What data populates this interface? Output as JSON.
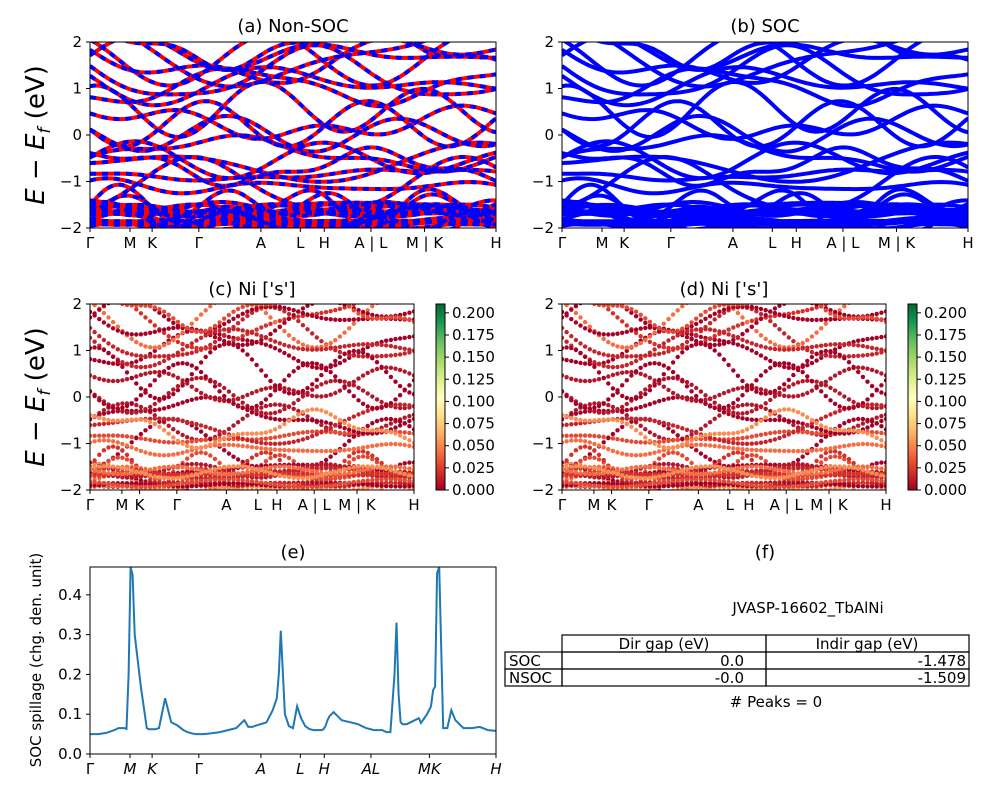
{
  "figure": {
    "panel_a_title": "(a) Non-SOC",
    "panel_b_title": "(b) SOC",
    "panel_c_title": "(c)  Ni ['s']",
    "panel_d_title": "(d) Ni ['s']",
    "panel_e_title": "(e)",
    "panel_f_title": "(f)",
    "energy_ylabel": "E − E_f (eV)",
    "spillage_ylabel": "SOC spillage (chg. den. unit)"
  },
  "kpath": {
    "band_labels": [
      "Γ",
      "M",
      "K",
      "Γ",
      "A",
      "L",
      "H",
      "A | L",
      "M | K",
      "H"
    ],
    "spillage_labels": [
      "Γ",
      "M",
      "K",
      "Γ",
      "A",
      "L",
      "H",
      "AL",
      "MK",
      "H"
    ]
  },
  "colorbar": {
    "ticks": [
      "0.000",
      "0.025",
      "0.050",
      "0.075",
      "0.100",
      "0.125",
      "0.150",
      "0.175",
      "0.200"
    ],
    "range": [
      0,
      0.21
    ],
    "colormap": "RdYlGn"
  },
  "colors": {
    "nonsoc_up": "#ff0000",
    "nonsoc_dn": "#0000ff",
    "soc": "#0000ff",
    "spillage_line": "#1f77b4"
  },
  "table": {
    "material": "JVASP-16602_TbAlNi",
    "headers": [
      "Dir gap (eV)",
      "Indir gap (eV)"
    ],
    "rows": [
      {
        "label": "SOC",
        "dir": "0.0",
        "indir": "-1.478"
      },
      {
        "label": "NSOC",
        "dir": "-0.0",
        "indir": "-1.509"
      }
    ],
    "peaks": "# Peaks = 0"
  },
  "chart_data": [
    {
      "panel": "a",
      "type": "line",
      "title": "(a) Non-SOC",
      "ylabel": "E − E_f (eV)",
      "ylim": [
        -2,
        2
      ],
      "yticks": [
        -2,
        -1,
        0,
        1,
        2
      ],
      "xticklabels": [
        "Γ",
        "M",
        "K",
        "Γ",
        "A",
        "L",
        "H",
        "A | L",
        "M | K",
        "H"
      ]
    },
    {
      "panel": "b",
      "type": "line",
      "title": "(b) SOC",
      "ylim": [
        -2,
        2
      ],
      "yticks": [
        -2,
        -1,
        0,
        1,
        2
      ],
      "xticklabels": [
        "Γ",
        "M",
        "K",
        "Γ",
        "A",
        "L",
        "H",
        "A | L",
        "M | K",
        "H"
      ]
    },
    {
      "panel": "c",
      "type": "scatter",
      "title": "(c)  Ni ['s']",
      "ylabel": "E − E_f (eV)",
      "ylim": [
        -2,
        2
      ],
      "yticks": [
        -2,
        -1,
        0,
        1,
        2
      ],
      "xticklabels": [
        "Γ",
        "M",
        "K",
        "Γ",
        "A",
        "L",
        "H",
        "A | L",
        "M | K",
        "H"
      ],
      "colorbar_range": [
        0,
        0.21
      ]
    },
    {
      "panel": "d",
      "type": "scatter",
      "title": "(d) Ni ['s']",
      "ylim": [
        -2,
        2
      ],
      "yticks": [
        -2,
        -1,
        0,
        1,
        2
      ],
      "xticklabels": [
        "Γ",
        "M",
        "K",
        "Γ",
        "A",
        "L",
        "H",
        "A | L",
        "M | K",
        "H"
      ],
      "colorbar_range": [
        0,
        0.21
      ]
    },
    {
      "panel": "e",
      "type": "line",
      "title": "(e)",
      "ylabel": "SOC spillage (chg. den. unit)",
      "ylim": [
        0,
        0.47
      ],
      "yticks": [
        0.0,
        0.1,
        0.2,
        0.3,
        0.4
      ],
      "xticklabels": [
        "Γ",
        "M",
        "K",
        "Γ",
        "A",
        "L",
        "H",
        "AL",
        "MK",
        "H"
      ],
      "series": [
        {
          "x": [
            0,
            0.02,
            0.04,
            0.06,
            0.07,
            0.08,
            0.085,
            0.09,
            0.095,
            0.1,
            0.105,
            0.11,
            0.125,
            0.14,
            0.145,
            0.15,
            0.155,
            0.16,
            0.17,
            0.185,
            0.2,
            0.215,
            0.23,
            0.24,
            0.25,
            0.26,
            0.27,
            0.275,
            0.28,
            0.3,
            0.32,
            0.34,
            0.36,
            0.38,
            0.39,
            0.4,
            0.405,
            0.41,
            0.42,
            0.43,
            0.435,
            0.44,
            0.45,
            0.46,
            0.465,
            0.47,
            0.48,
            0.49,
            0.5,
            0.51,
            0.52,
            0.53,
            0.54,
            0.55,
            0.56,
            0.57,
            0.575,
            0.58,
            0.585,
            0.59,
            0.6,
            0.61,
            0.62,
            0.64,
            0.66,
            0.68,
            0.7,
            0.72,
            0.73,
            0.74,
            0.75,
            0.755,
            0.76,
            0.765,
            0.77,
            0.78,
            0.79,
            0.8,
            0.81,
            0.815,
            0.82,
            0.83,
            0.84,
            0.845,
            0.85,
            0.855,
            0.86,
            0.87,
            0.88,
            0.89,
            0.9,
            0.92,
            0.94,
            0.96,
            0.98,
            1.0
          ],
          "y": [
            0.05,
            0.05,
            0.053,
            0.06,
            0.065,
            0.065,
            0.065,
            0.063,
            0.2,
            0.47,
            0.45,
            0.3,
            0.17,
            0.065,
            0.062,
            0.062,
            0.062,
            0.062,
            0.065,
            0.14,
            0.08,
            0.072,
            0.06,
            0.055,
            0.052,
            0.05,
            0.05,
            0.05,
            0.05,
            0.052,
            0.055,
            0.06,
            0.065,
            0.085,
            0.068,
            0.068,
            0.07,
            0.072,
            0.075,
            0.078,
            0.08,
            0.09,
            0.11,
            0.14,
            0.2,
            0.31,
            0.1,
            0.07,
            0.065,
            0.12,
            0.09,
            0.07,
            0.063,
            0.06,
            0.06,
            0.06,
            0.062,
            0.07,
            0.085,
            0.095,
            0.105,
            0.095,
            0.085,
            0.08,
            0.075,
            0.065,
            0.06,
            0.06,
            0.055,
            0.055,
            0.2,
            0.33,
            0.15,
            0.08,
            0.075,
            0.075,
            0.08,
            0.085,
            0.09,
            0.078,
            0.085,
            0.1,
            0.12,
            0.16,
            0.17,
            0.455,
            0.47,
            0.065,
            0.065,
            0.11,
            0.085,
            0.065,
            0.065,
            0.068,
            0.06,
            0.058
          ]
        }
      ]
    }
  ]
}
